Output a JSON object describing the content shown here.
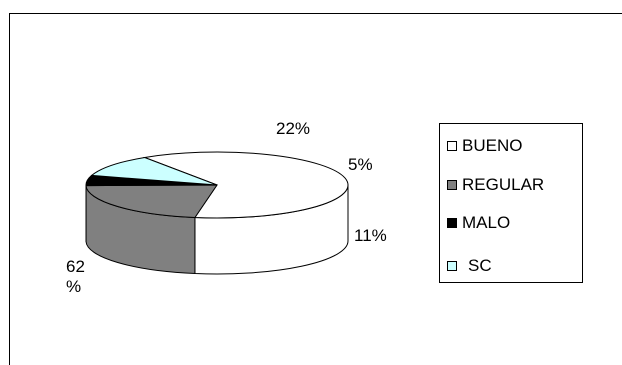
{
  "chart_data": {
    "type": "pie",
    "style": "3d",
    "title": "",
    "categories": [
      "BUENO",
      "REGULAR",
      "MALO",
      "SC"
    ],
    "values": [
      62,
      22,
      5,
      11
    ],
    "labels": [
      "62\n%",
      "22%",
      "5%",
      "11%"
    ],
    "colors": [
      "#ffffff",
      "#808080",
      "#000000",
      "#ccffff"
    ],
    "legend_position": "right"
  }
}
